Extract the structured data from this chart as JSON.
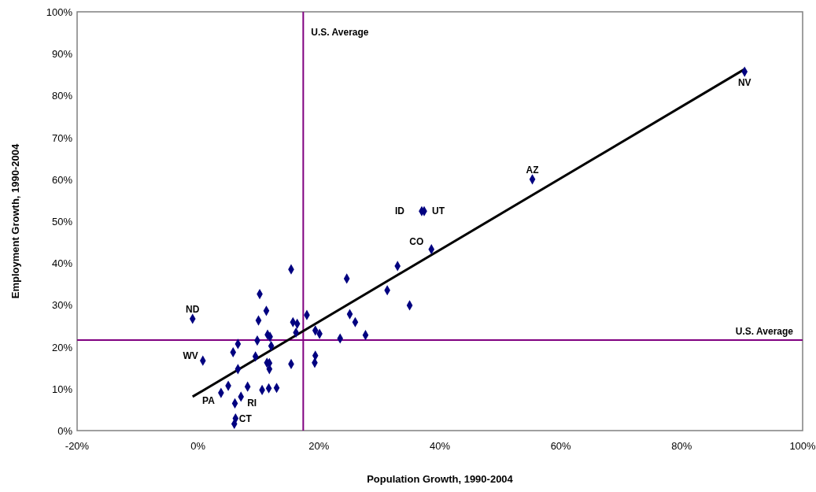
{
  "chart_data": {
    "type": "scatter",
    "xlabel": "Population Growth, 1990-2004",
    "ylabel": "Employment Growth, 1990-2004",
    "xlim": [
      -20,
      100
    ],
    "ylim": [
      0,
      100
    ],
    "xticks": [
      {
        "value": -20,
        "label": "-20%"
      },
      {
        "value": 0,
        "label": "0%"
      },
      {
        "value": 20,
        "label": "20%"
      },
      {
        "value": 40,
        "label": "40%"
      },
      {
        "value": 60,
        "label": "60%"
      },
      {
        "value": 80,
        "label": "80%"
      },
      {
        "value": 100,
        "label": "100%"
      }
    ],
    "yticks": [
      {
        "value": 0,
        "label": "0%"
      },
      {
        "value": 10,
        "label": "10%"
      },
      {
        "value": 20,
        "label": "20%"
      },
      {
        "value": 30,
        "label": "30%"
      },
      {
        "value": 40,
        "label": "40%"
      },
      {
        "value": 50,
        "label": "50%"
      },
      {
        "value": 60,
        "label": "60%"
      },
      {
        "value": 70,
        "label": "70%"
      },
      {
        "value": 80,
        "label": "80%"
      },
      {
        "value": 90,
        "label": "90%"
      },
      {
        "value": 100,
        "label": "100%"
      }
    ],
    "grid": false,
    "series": [
      {
        "color": "#000080",
        "marker": "diamond",
        "x": [
          -0.9,
          15.4,
          10.2,
          11.3,
          10.0,
          18.0,
          15.7,
          16.4,
          16.2,
          19.4,
          20.1,
          23.5,
          27.7,
          25.1,
          26.0,
          24.6,
          31.3,
          33.0,
          35.0,
          11.5,
          11.9,
          9.8,
          6.6,
          5.8,
          12.1,
          9.5,
          0.8,
          6.6,
          11.4,
          11.8,
          11.8,
          15.4,
          19.4,
          19.3,
          5.0,
          3.8,
          8.2,
          7.1,
          6.1,
          10.6,
          11.7,
          13.0,
          6.2,
          6.0,
          55.3,
          37.0,
          37.4,
          38.6,
          90.4
        ],
        "values": [
          26.7,
          38.5,
          32.6,
          28.6,
          26.3,
          27.6,
          25.9,
          25.5,
          23.4,
          23.9,
          23.1,
          22.0,
          22.8,
          27.8,
          25.9,
          36.3,
          33.5,
          39.3,
          29.9,
          22.9,
          22.4,
          21.5,
          20.7,
          18.7,
          20.2,
          17.7,
          16.7,
          14.7,
          16.2,
          16.1,
          14.7,
          15.9,
          17.9,
          16.2,
          10.7,
          9.0,
          10.5,
          8.1,
          6.5,
          9.7,
          10.1,
          10.2,
          2.9,
          1.6,
          60.0,
          52.4,
          52.4,
          43.3,
          85.7
        ]
      },
      {
        "type": "line",
        "color": "#000000",
        "line_style": "solid",
        "x": [
          -0.9,
          90.4
        ],
        "values": [
          8.1,
          86.3
        ]
      }
    ],
    "ref_lines": [
      {
        "axis": "x",
        "value": 17.4,
        "label": "U.S. Average",
        "color": "#800080"
      },
      {
        "axis": "y",
        "value": 21.6,
        "label": "U.S. Average",
        "color": "#800080"
      }
    ],
    "annotations": [
      {
        "text": "ND",
        "x": -0.9,
        "y": 26.7
      },
      {
        "text": "WV",
        "x": 0.8,
        "y": 16.7
      },
      {
        "text": "PA",
        "x": 3.8,
        "y": 9.0
      },
      {
        "text": "RI",
        "x": 7.1,
        "y": 8.1
      },
      {
        "text": "CT",
        "x": 6.0,
        "y": 1.6
      },
      {
        "text": "ID",
        "x": 37.0,
        "y": 52.4
      },
      {
        "text": "UT",
        "x": 37.4,
        "y": 52.4
      },
      {
        "text": "CO",
        "x": 38.6,
        "y": 43.3
      },
      {
        "text": "AZ",
        "x": 55.3,
        "y": 60.0
      },
      {
        "text": "NV",
        "x": 90.4,
        "y": 85.7
      }
    ]
  }
}
